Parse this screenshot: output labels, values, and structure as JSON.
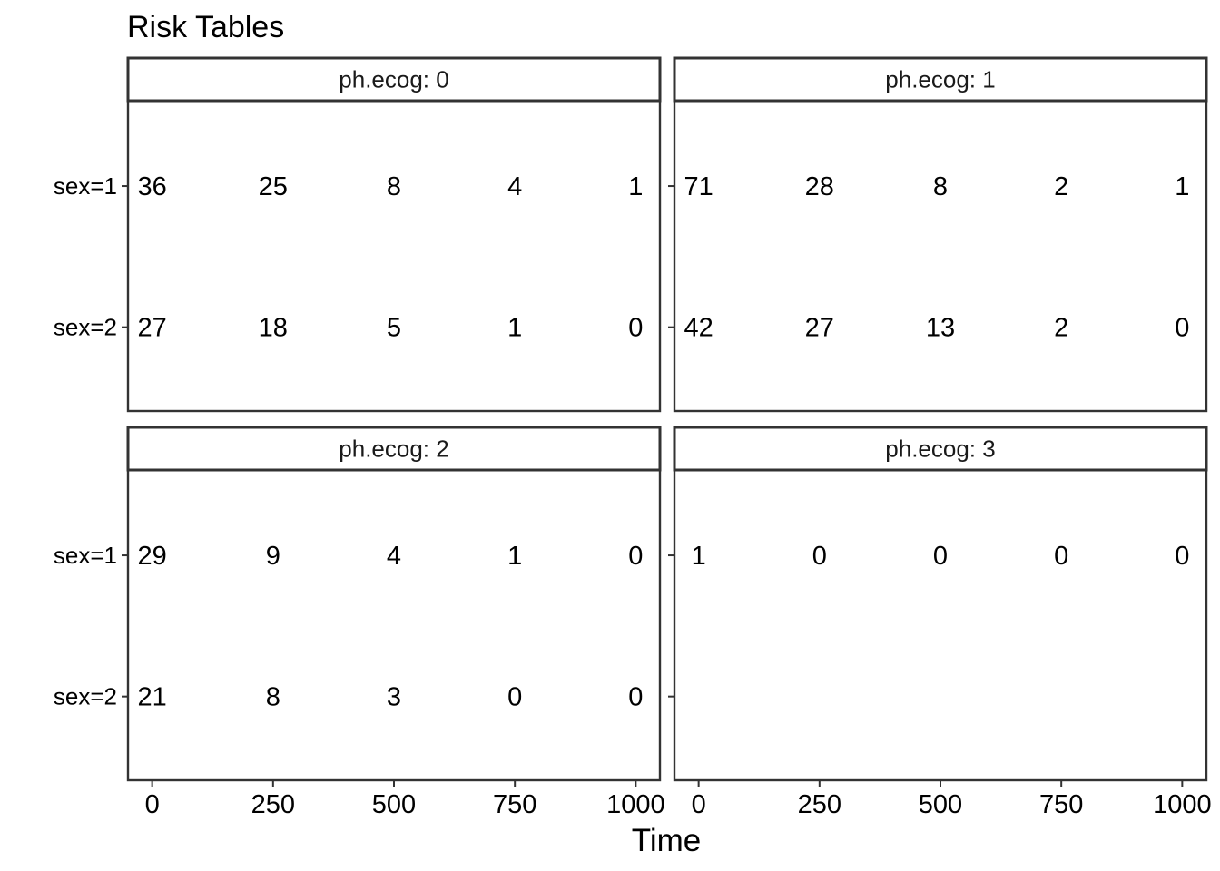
{
  "chart_data": {
    "type": "table",
    "title": "Risk Tables",
    "xlabel": "Time",
    "ylabel": "",
    "x_ticks": [
      0,
      250,
      500,
      750,
      1000
    ],
    "xlim": [
      -50,
      1050
    ],
    "strata": [
      "sex=1",
      "sex=2"
    ],
    "facet_prefix": "ph.ecog: ",
    "grid": false,
    "panels": [
      {
        "facet": "ph.ecog: 0",
        "rows": [
          {
            "stratum": "sex=1",
            "values": [
              36,
              25,
              8,
              4,
              1
            ]
          },
          {
            "stratum": "sex=2",
            "values": [
              27,
              18,
              5,
              1,
              0
            ]
          }
        ]
      },
      {
        "facet": "ph.ecog: 1",
        "rows": [
          {
            "stratum": "sex=1",
            "values": [
              71,
              28,
              8,
              2,
              1
            ]
          },
          {
            "stratum": "sex=2",
            "values": [
              42,
              27,
              13,
              2,
              0
            ]
          }
        ]
      },
      {
        "facet": "ph.ecog: 2",
        "rows": [
          {
            "stratum": "sex=1",
            "values": [
              29,
              9,
              4,
              1,
              0
            ]
          },
          {
            "stratum": "sex=2",
            "values": [
              21,
              8,
              3,
              0,
              0
            ]
          }
        ]
      },
      {
        "facet": "ph.ecog: 3",
        "rows": [
          {
            "stratum": "sex=1",
            "values": [
              1,
              0,
              0,
              0,
              0
            ]
          }
        ]
      }
    ]
  }
}
